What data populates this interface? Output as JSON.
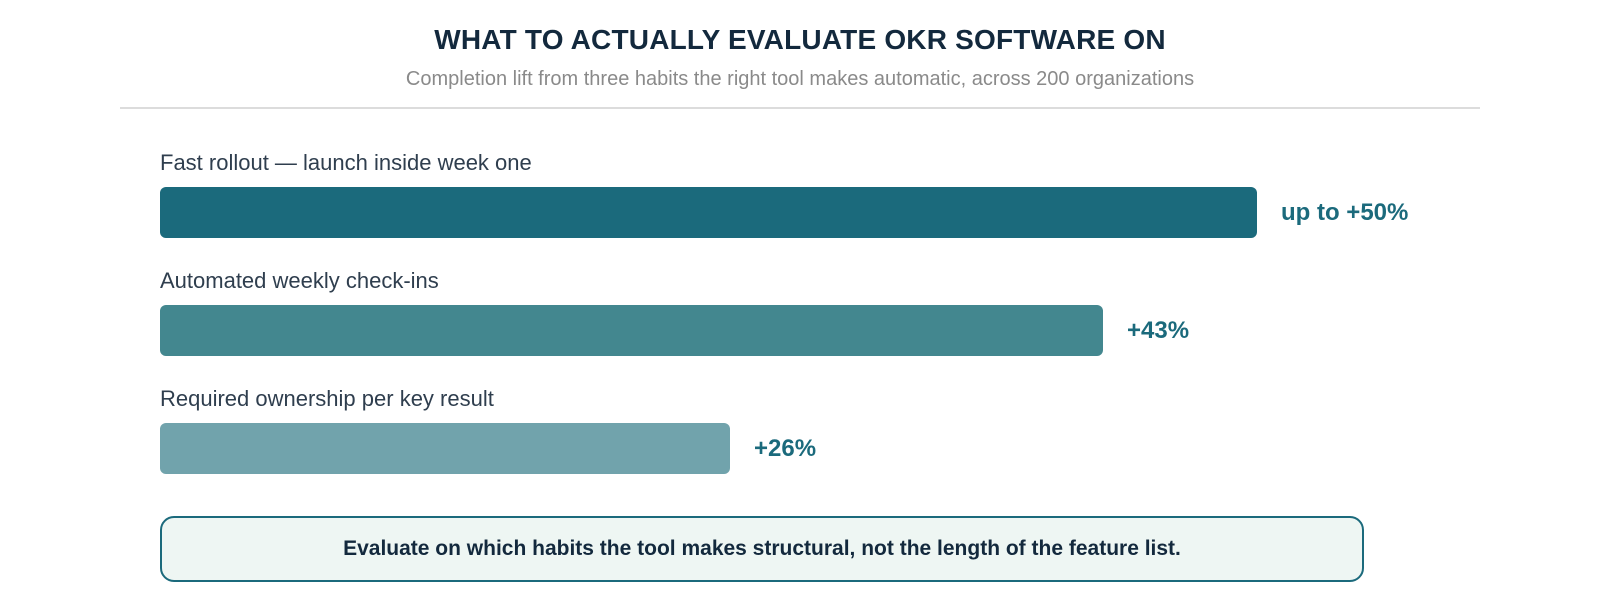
{
  "header": {
    "title": "WHAT TO ACTUALLY EVALUATE OKR SOFTWARE ON",
    "subtitle": "Completion lift from three habits the right tool makes automatic, across 200 organizations"
  },
  "chart_data": {
    "type": "bar",
    "orientation": "horizontal",
    "title": "WHAT TO ACTUALLY EVALUATE OKR SOFTWARE ON",
    "subtitle": "Completion lift from three habits the right tool makes automatic, across 200 organizations",
    "categories": [
      "Fast rollout — launch inside week one",
      "Automated weekly check-ins",
      "Required ownership per key result"
    ],
    "values": [
      50,
      43,
      26
    ],
    "value_labels": [
      "up to +50%",
      "+43%",
      "+26%"
    ],
    "colors": [
      "#1b6a7c",
      "#43878f",
      "#71a3ac"
    ],
    "xlim": [
      0,
      50
    ],
    "grid": false
  },
  "callout": {
    "text": "Evaluate on which habits the tool makes structural, not the length of the feature list."
  }
}
